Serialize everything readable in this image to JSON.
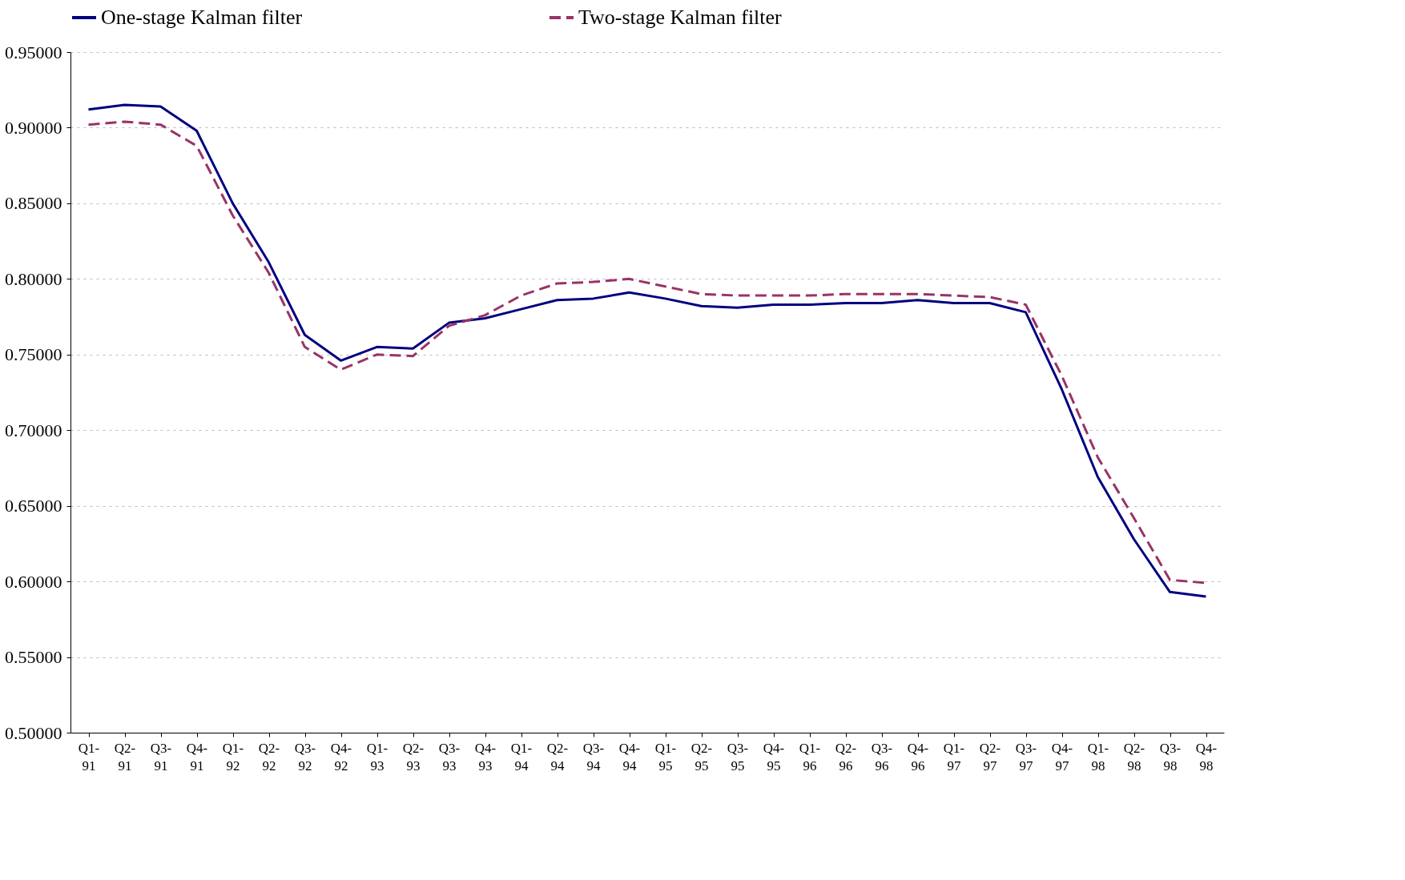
{
  "chart_data": {
    "type": "line",
    "categories": [
      "Q1-91",
      "Q2-91",
      "Q3-91",
      "Q4-91",
      "Q1-92",
      "Q2-92",
      "Q3-92",
      "Q4-92",
      "Q1-93",
      "Q2-93",
      "Q3-93",
      "Q4-93",
      "Q1-94",
      "Q2-94",
      "Q3-94",
      "Q4-94",
      "Q1-95",
      "Q2-95",
      "Q3-95",
      "Q4-95",
      "Q1-96",
      "Q2-96",
      "Q3-96",
      "Q4-96",
      "Q1-97",
      "Q2-97",
      "Q3-97",
      "Q4-97",
      "Q1-98",
      "Q2-98",
      "Q3-98",
      "Q4-98"
    ],
    "series": [
      {
        "name": "One-stage Kalman filter",
        "color": "#000080",
        "line_style": "solid",
        "values": [
          0.912,
          0.915,
          0.914,
          0.898,
          0.85,
          0.811,
          0.763,
          0.746,
          0.755,
          0.754,
          0.771,
          0.774,
          0.78,
          0.786,
          0.787,
          0.791,
          0.787,
          0.782,
          0.781,
          0.783,
          0.783,
          0.784,
          0.784,
          0.786,
          0.784,
          0.784,
          0.778,
          0.727,
          0.669,
          0.628,
          0.593,
          0.59
        ]
      },
      {
        "name": "Two-stage Kalman filter",
        "color": "#993366",
        "line_style": "dashed",
        "values": [
          0.902,
          0.904,
          0.902,
          0.888,
          0.842,
          0.804,
          0.755,
          0.74,
          0.75,
          0.749,
          0.769,
          0.776,
          0.789,
          0.797,
          0.798,
          0.8,
          0.795,
          0.79,
          0.789,
          0.789,
          0.789,
          0.79,
          0.79,
          0.79,
          0.789,
          0.788,
          0.783,
          0.736,
          0.682,
          0.642,
          0.601,
          0.599
        ]
      }
    ],
    "ylim": [
      0.5,
      0.95
    ],
    "yticks": [
      {
        "value": 0.5,
        "label": "0.50000"
      },
      {
        "value": 0.55,
        "label": "0.55000"
      },
      {
        "value": 0.6,
        "label": "0.60000"
      },
      {
        "value": 0.65,
        "label": "0.65000"
      },
      {
        "value": 0.7,
        "label": "0.70000"
      },
      {
        "value": 0.75,
        "label": "0.75000"
      },
      {
        "value": 0.8,
        "label": "0.80000"
      },
      {
        "value": 0.85,
        "label": "0.85000"
      },
      {
        "value": 0.9,
        "label": "0.90000"
      },
      {
        "value": 0.95,
        "label": "0.95000"
      }
    ],
    "grid": "y",
    "legend": "top",
    "marker": "none"
  }
}
